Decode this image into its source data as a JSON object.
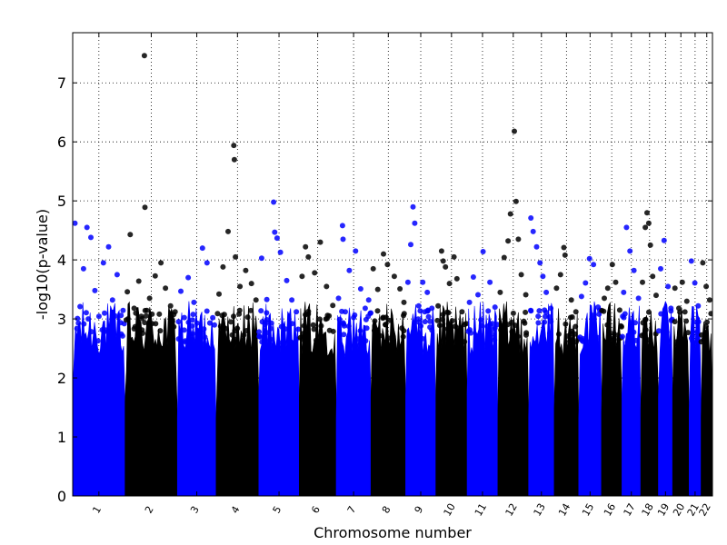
{
  "chart_data": {
    "type": "scatter",
    "title": "",
    "xlabel": "Chromosome number",
    "ylabel": "-log10(p-value)",
    "ylim": [
      0,
      7.85
    ],
    "yticks": [
      0,
      1,
      2,
      3,
      4,
      5,
      6,
      7
    ],
    "grid": true,
    "legend": "none",
    "colors": {
      "odd": "#0000ff",
      "even": "#000000"
    },
    "chromosomes": [
      {
        "label": "1",
        "start": 0.0,
        "end": 9.2
      },
      {
        "label": "2",
        "start": 9.2,
        "end": 18.4
      },
      {
        "label": "3",
        "start": 18.4,
        "end": 25.2
      },
      {
        "label": "4",
        "start": 25.2,
        "end": 32.7
      },
      {
        "label": "5",
        "start": 32.7,
        "end": 39.8
      },
      {
        "label": "6",
        "start": 39.8,
        "end": 46.3
      },
      {
        "label": "7",
        "start": 46.3,
        "end": 52.4
      },
      {
        "label": "8",
        "start": 52.4,
        "end": 58.5
      },
      {
        "label": "9",
        "start": 58.5,
        "end": 63.8
      },
      {
        "label": "10",
        "start": 63.8,
        "end": 69.3
      },
      {
        "label": "11",
        "start": 69.3,
        "end": 74.7
      },
      {
        "label": "12",
        "start": 74.7,
        "end": 80.1
      },
      {
        "label": "13",
        "start": 80.1,
        "end": 84.6
      },
      {
        "label": "14",
        "start": 84.6,
        "end": 88.9
      },
      {
        "label": "15",
        "start": 88.9,
        "end": 92.9
      },
      {
        "label": "16",
        "start": 92.9,
        "end": 96.5
      },
      {
        "label": "17",
        "start": 96.5,
        "end": 99.8
      },
      {
        "label": "18",
        "start": 99.8,
        "end": 102.9
      },
      {
        "label": "19",
        "start": 102.9,
        "end": 105.4
      },
      {
        "label": "20",
        "start": 105.4,
        "end": 108.3
      },
      {
        "label": "21",
        "start": 108.3,
        "end": 110.4
      },
      {
        "label": "22",
        "start": 110.4,
        "end": 112.4
      }
    ],
    "series": [
      {
        "values": [
          [
            0.4,
            4.62
          ],
          [
            1.3,
            3.21
          ],
          [
            1.9,
            3.85
          ],
          [
            2.5,
            4.55
          ],
          [
            3.2,
            4.38
          ],
          [
            3.9,
            3.48
          ],
          [
            5.4,
            3.95
          ],
          [
            6.3,
            4.22
          ],
          [
            7.0,
            3.32
          ],
          [
            7.8,
            3.75
          ],
          [
            8.5,
            3.06
          ]
        ]
      },
      {
        "values": [
          [
            9.6,
            3.46
          ],
          [
            10.1,
            4.43
          ],
          [
            10.8,
            3.18
          ],
          [
            11.6,
            3.64
          ],
          [
            12.6,
            7.46
          ],
          [
            12.7,
            4.89
          ],
          [
            13.5,
            3.35
          ],
          [
            14.5,
            3.73
          ],
          [
            15.5,
            3.95
          ],
          [
            16.3,
            3.52
          ],
          [
            17.2,
            3.22
          ],
          [
            18.0,
            3.12
          ]
        ]
      },
      {
        "values": [
          [
            19.0,
            3.47
          ],
          [
            20.3,
            3.7
          ],
          [
            21.3,
            3.28
          ],
          [
            22.8,
            4.2
          ],
          [
            23.6,
            3.95
          ],
          [
            24.6,
            3.02
          ]
        ]
      },
      {
        "values": [
          [
            25.7,
            3.42
          ],
          [
            26.4,
            3.88
          ],
          [
            27.3,
            4.48
          ],
          [
            28.3,
            5.94
          ],
          [
            28.4,
            5.7
          ],
          [
            28.6,
            4.05
          ],
          [
            29.4,
            3.55
          ],
          [
            30.4,
            3.82
          ],
          [
            31.4,
            3.6
          ],
          [
            32.2,
            3.32
          ]
        ]
      },
      {
        "values": [
          [
            33.2,
            4.03
          ],
          [
            34.1,
            3.33
          ],
          [
            35.3,
            4.98
          ],
          [
            35.5,
            4.47
          ],
          [
            35.9,
            4.37
          ],
          [
            36.5,
            4.13
          ],
          [
            37.6,
            3.65
          ],
          [
            38.5,
            3.32
          ],
          [
            39.3,
            3.12
          ]
        ]
      },
      {
        "values": [
          [
            40.3,
            3.72
          ],
          [
            40.9,
            4.22
          ],
          [
            41.4,
            4.05
          ],
          [
            42.5,
            3.78
          ],
          [
            43.5,
            4.3
          ],
          [
            44.6,
            3.55
          ],
          [
            45.7,
            3.23
          ]
        ]
      },
      {
        "values": [
          [
            46.7,
            3.35
          ],
          [
            47.4,
            4.58
          ],
          [
            47.5,
            4.35
          ],
          [
            47.9,
            3.12
          ],
          [
            48.6,
            3.82
          ],
          [
            49.7,
            4.15
          ],
          [
            50.6,
            3.51
          ],
          [
            51.4,
            3.18
          ],
          [
            52.0,
            3.32
          ]
        ]
      },
      {
        "values": [
          [
            52.8,
            3.85
          ],
          [
            53.6,
            3.5
          ],
          [
            54.6,
            4.1
          ],
          [
            55.3,
            3.92
          ],
          [
            56.5,
            3.72
          ],
          [
            57.5,
            3.51
          ],
          [
            58.2,
            3.28
          ]
        ]
      },
      {
        "values": [
          [
            58.9,
            3.62
          ],
          [
            59.4,
            4.26
          ],
          [
            59.8,
            4.9
          ],
          [
            60.1,
            4.62
          ],
          [
            60.8,
            3.22
          ],
          [
            61.5,
            3.62
          ],
          [
            62.3,
            3.45
          ],
          [
            63.1,
            3.18
          ]
        ]
      },
      {
        "values": [
          [
            64.2,
            3.22
          ],
          [
            64.8,
            4.15
          ],
          [
            65.1,
            3.98
          ],
          [
            65.5,
            3.88
          ],
          [
            66.2,
            3.6
          ],
          [
            67.0,
            4.05
          ],
          [
            67.5,
            3.68
          ],
          [
            68.4,
            3.12
          ]
        ]
      },
      {
        "values": [
          [
            69.7,
            3.28
          ],
          [
            70.4,
            3.71
          ],
          [
            71.2,
            3.41
          ],
          [
            72.1,
            4.14
          ],
          [
            73.3,
            3.62
          ],
          [
            74.2,
            3.2
          ]
        ]
      },
      {
        "values": [
          [
            75.1,
            3.45
          ],
          [
            75.8,
            4.04
          ],
          [
            76.5,
            4.32
          ],
          [
            76.9,
            4.78
          ],
          [
            77.6,
            6.18
          ],
          [
            77.9,
            4.99
          ],
          [
            78.3,
            4.35
          ],
          [
            78.8,
            3.75
          ],
          [
            79.6,
            3.41
          ]
        ]
      },
      {
        "values": [
          [
            80.5,
            4.71
          ],
          [
            80.9,
            4.48
          ],
          [
            81.5,
            4.22
          ],
          [
            82.1,
            3.95
          ],
          [
            82.6,
            3.72
          ],
          [
            83.2,
            3.45
          ],
          [
            84.0,
            3.18
          ]
        ]
      },
      {
        "values": [
          [
            85.0,
            3.52
          ],
          [
            85.7,
            3.75
          ],
          [
            86.3,
            4.21
          ],
          [
            86.5,
            4.08
          ],
          [
            87.6,
            3.32
          ],
          [
            88.4,
            3.12
          ]
        ]
      },
      {
        "values": [
          [
            89.4,
            3.38
          ],
          [
            90.1,
            3.61
          ],
          [
            90.8,
            4.02
          ],
          [
            91.5,
            3.92
          ],
          [
            92.3,
            3.2
          ]
        ]
      },
      {
        "values": [
          [
            93.4,
            3.35
          ],
          [
            94.0,
            3.52
          ],
          [
            94.8,
            3.92
          ],
          [
            95.4,
            3.62
          ],
          [
            96.1,
            3.15
          ]
        ]
      },
      {
        "values": [
          [
            96.8,
            3.45
          ],
          [
            97.3,
            4.55
          ],
          [
            97.9,
            4.15
          ],
          [
            98.6,
            3.82
          ],
          [
            99.4,
            3.35
          ]
        ]
      },
      {
        "values": [
          [
            100.1,
            3.62
          ],
          [
            100.6,
            4.55
          ],
          [
            100.9,
            4.8
          ],
          [
            101.2,
            4.62
          ],
          [
            101.5,
            4.25
          ],
          [
            101.9,
            3.72
          ],
          [
            102.5,
            3.4
          ]
        ]
      },
      {
        "values": [
          [
            103.3,
            3.85
          ],
          [
            103.9,
            4.33
          ],
          [
            104.6,
            3.55
          ],
          [
            105.1,
            3.18
          ]
        ]
      },
      {
        "values": [
          [
            105.8,
            3.52
          ],
          [
            106.5,
            3.18
          ],
          [
            107.1,
            3.62
          ],
          [
            107.9,
            3.3
          ]
        ]
      },
      {
        "values": [
          [
            108.7,
            3.98
          ],
          [
            109.3,
            3.61
          ],
          [
            109.9,
            3.22
          ]
        ]
      },
      {
        "values": [
          [
            110.7,
            3.95
          ],
          [
            111.3,
            3.55
          ],
          [
            111.9,
            3.32
          ]
        ]
      }
    ]
  }
}
